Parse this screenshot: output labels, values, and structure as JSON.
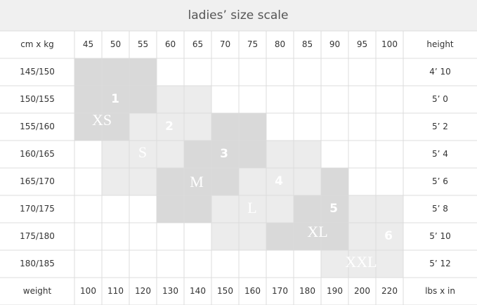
{
  "header": {
    "title": "ladies’ size scale",
    "corner": "cm x kg",
    "last": "height",
    "weights_kg": [
      45,
      50,
      55,
      60,
      65,
      70,
      75,
      80,
      85,
      90,
      95,
      100
    ]
  },
  "rows": [
    {
      "label": "145/150",
      "height": "4’ 10"
    },
    {
      "label": "150/155",
      "height": "5’ 0"
    },
    {
      "label": "155/160",
      "height": "5’ 2"
    },
    {
      "label": "160/165",
      "height": "5’ 4"
    },
    {
      "label": "165/170",
      "height": "5’ 6"
    },
    {
      "label": "170/175",
      "height": "5’ 8"
    },
    {
      "label": "175/180",
      "height": "5’ 10"
    },
    {
      "label": "180/185",
      "height": "5’ 12"
    }
  ],
  "footer": {
    "label": "weight",
    "weights_lbs": [
      100,
      110,
      120,
      130,
      140,
      150,
      160,
      170,
      180,
      190,
      200,
      220
    ],
    "unit": "lbs x in"
  },
  "zones": [
    {
      "number": "1",
      "size": "XS"
    },
    {
      "number": "2",
      "size": "S"
    },
    {
      "number": "3",
      "size": "M"
    },
    {
      "number": "4",
      "size": "L"
    },
    {
      "number": "5",
      "size": "XL"
    },
    {
      "number": "6",
      "size": "XXL"
    }
  ]
}
